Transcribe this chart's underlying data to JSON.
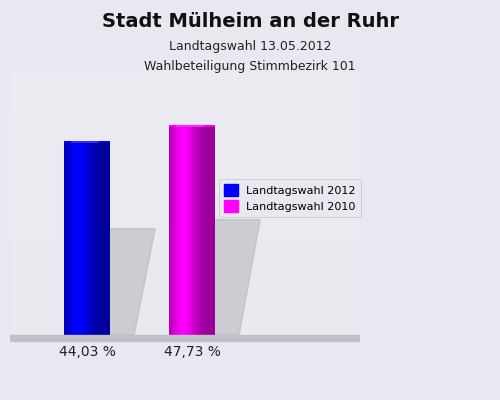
{
  "title": "Stadt Mülheim an der Ruhr",
  "subtitle1": "Landtagswahl 13.05.2012",
  "subtitle2": "Wahlbeteiligung Stimmbezirk 101",
  "values": [
    44.03,
    47.73
  ],
  "labels": [
    "44,03 %",
    "47,73 %"
  ],
  "bar_colors": [
    "#0000ff",
    "#ff00ff"
  ],
  "bar_positions": [
    0.22,
    0.52
  ],
  "bar_width": 0.13,
  "legend_labels": [
    "Landtagswahl 2012",
    "Landtagswahl 2010"
  ],
  "legend_colors": [
    "#0000ff",
    "#ff00ff"
  ],
  "background_color": "#e8e8f0",
  "ylim": [
    0,
    60
  ],
  "title_fontsize": 14,
  "subtitle_fontsize": 9,
  "label_fontsize": 10
}
